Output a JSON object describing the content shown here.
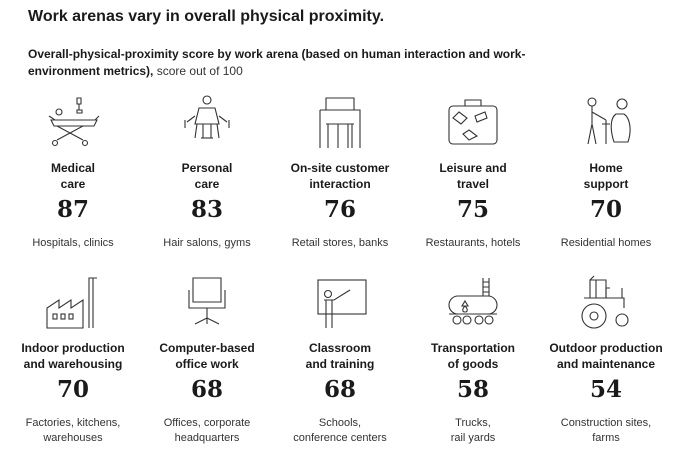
{
  "title": "Work arenas vary in overall physical proximity.",
  "subtitle": {
    "bold": "Overall-physical-proximity score by work arena (based on human interaction and work-environment metrics),",
    "unit": "score out of 100"
  },
  "chart_data": {
    "type": "table",
    "categories": [
      "Medical care",
      "Personal care",
      "On-site customer interaction",
      "Leisure and travel",
      "Home support",
      "Indoor production and warehousing",
      "Computer-based office work",
      "Classroom and training",
      "Transportation of goods",
      "Outdoor production and maintenance"
    ],
    "values": [
      87,
      83,
      76,
      75,
      70,
      70,
      68,
      68,
      58,
      54
    ],
    "ylim": [
      0,
      100
    ],
    "cells": [
      {
        "label_lines": [
          "Medical",
          "care"
        ],
        "score": "87",
        "example_lines": [
          "Hospitals, clinics"
        ],
        "icon": "hospital-bed-icon"
      },
      {
        "label_lines": [
          "Personal",
          "care"
        ],
        "score": "83",
        "example_lines": [
          "Hair salons, gyms"
        ],
        "icon": "salon-chair-icon"
      },
      {
        "label_lines": [
          "On-site customer",
          "interaction"
        ],
        "score": "76",
        "example_lines": [
          "Retail stores, banks"
        ],
        "icon": "storefront-icon"
      },
      {
        "label_lines": [
          "Leisure and",
          "travel"
        ],
        "score": "75",
        "example_lines": [
          "Restaurants, hotels"
        ],
        "icon": "suitcase-icon"
      },
      {
        "label_lines": [
          "Home",
          "support"
        ],
        "score": "70",
        "example_lines": [
          "Residential homes"
        ],
        "icon": "caregiver-icon"
      },
      {
        "label_lines": [
          "Indoor production",
          "and warehousing"
        ],
        "score": "70",
        "example_lines": [
          "Factories, kitchens,",
          "warehouses"
        ],
        "icon": "factory-icon"
      },
      {
        "label_lines": [
          "Computer-based",
          "office work"
        ],
        "score": "68",
        "example_lines": [
          "Offices, corporate",
          "headquarters"
        ],
        "icon": "office-chair-icon"
      },
      {
        "label_lines": [
          "Classroom",
          "and training"
        ],
        "score": "68",
        "example_lines": [
          "Schools,",
          "conference centers"
        ],
        "icon": "teacher-board-icon"
      },
      {
        "label_lines": [
          "Transportation",
          "of goods"
        ],
        "score": "58",
        "example_lines": [
          "Trucks,",
          "rail yards"
        ],
        "icon": "tank-car-icon"
      },
      {
        "label_lines": [
          "Outdoor production",
          "and maintenance"
        ],
        "score": "54",
        "example_lines": [
          "Construction sites,",
          "farms"
        ],
        "icon": "tractor-icon"
      }
    ]
  }
}
